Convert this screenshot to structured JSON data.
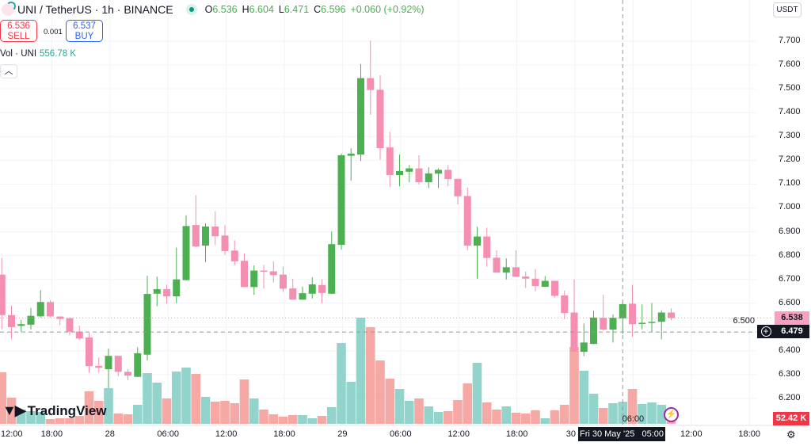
{
  "header": {
    "symbol": "UNI / TetherUS · 1h · BINANCE",
    "o_label": "O",
    "o": "6.536",
    "h_label": "H",
    "h": "6.604",
    "l_label": "L",
    "l": "6.471",
    "c_label": "C",
    "c": "6.596",
    "change": "+0.060 (+0.92%)"
  },
  "trade": {
    "sell_price": "6.536",
    "sell_label": "SELL",
    "spread": "0.001",
    "buy_price": "6.537",
    "buy_label": "BUY"
  },
  "volume_legend": {
    "label": "Vol · UNI",
    "value": "556.78 K"
  },
  "collapse_icon": "chevron-up-icon",
  "currency": "USDT",
  "price_axis": [
    "7.700",
    "7.600",
    "7.500",
    "7.400",
    "7.300",
    "7.200",
    "7.100",
    "7.000",
    "6.900",
    "6.800",
    "6.700",
    "6.600",
    "6.500",
    "6.400",
    "6.300",
    "6.200"
  ],
  "time_axis": [
    "12:00",
    "18:00",
    "28",
    "06:00",
    "12:00",
    "18:00",
    "29",
    "06:00",
    "12:00",
    "18:00",
    "30",
    "06:00",
    "12:00",
    "18:00"
  ],
  "last_price_label": "6.538",
  "crosshair_price_label": "6.479",
  "crosshair_time_label": "Fri 30 May '25   05:00",
  "volume_label": "52.42 K",
  "brand": "TradingView",
  "colors": {
    "up": "#4caf50",
    "down": "#f48fb1",
    "vol_up": "#92d3cc",
    "vol_down": "#f6a8a4"
  },
  "chart_data": {
    "type": "candlestick",
    "interval": "1h",
    "first_bar": "27 May 13:00",
    "ylim": [
      6.2,
      7.7
    ],
    "ohlc": [
      [
        6.72,
        6.79,
        6.49,
        6.55
      ],
      [
        6.55,
        6.59,
        6.45,
        6.5
      ],
      [
        6.505,
        6.53,
        6.48,
        6.512
      ],
      [
        6.51,
        6.58,
        6.49,
        6.547
      ],
      [
        6.545,
        6.655,
        6.54,
        6.605
      ],
      [
        6.605,
        6.612,
        6.54,
        6.545
      ],
      [
        6.544,
        6.545,
        6.507,
        6.534
      ],
      [
        6.537,
        6.54,
        6.465,
        6.48
      ],
      [
        6.481,
        6.506,
        6.445,
        6.452
      ],
      [
        6.456,
        6.476,
        6.308,
        6.336
      ],
      [
        6.337,
        6.372,
        6.308,
        6.329
      ],
      [
        6.323,
        6.41,
        6.243,
        6.379
      ],
      [
        6.379,
        6.38,
        6.293,
        6.312
      ],
      [
        6.312,
        6.323,
        6.277,
        6.296
      ],
      [
        6.291,
        6.415,
        6.29,
        6.39
      ],
      [
        6.384,
        6.715,
        6.36,
        6.639
      ],
      [
        6.64,
        6.712,
        6.587,
        6.659
      ],
      [
        6.659,
        6.678,
        6.598,
        6.629
      ],
      [
        6.629,
        6.833,
        6.6,
        6.7
      ],
      [
        6.697,
        6.969,
        6.695,
        6.924
      ],
      [
        6.928,
        7.053,
        6.835,
        6.838
      ],
      [
        6.842,
        6.935,
        6.773,
        6.922
      ],
      [
        6.922,
        6.986,
        6.844,
        6.881
      ],
      [
        6.884,
        6.928,
        6.803,
        6.819
      ],
      [
        6.821,
        6.864,
        6.759,
        6.776
      ],
      [
        6.778,
        6.809,
        6.667,
        6.668
      ],
      [
        6.668,
        6.759,
        6.635,
        6.737
      ],
      [
        6.737,
        6.761,
        6.661,
        6.733
      ],
      [
        6.734,
        6.776,
        6.687,
        6.718
      ],
      [
        6.72,
        6.753,
        6.648,
        6.661
      ],
      [
        6.662,
        6.703,
        6.615,
        6.615
      ],
      [
        6.615,
        6.67,
        6.614,
        6.642
      ],
      [
        6.64,
        6.709,
        6.62,
        6.679
      ],
      [
        6.676,
        6.7,
        6.6,
        6.643
      ],
      [
        6.64,
        6.901,
        6.639,
        6.848
      ],
      [
        6.845,
        7.228,
        6.825,
        7.221
      ],
      [
        7.219,
        7.25,
        7.114,
        7.228
      ],
      [
        7.224,
        7.604,
        7.197,
        7.545
      ],
      [
        7.545,
        7.703,
        7.391,
        7.495
      ],
      [
        7.496,
        7.557,
        7.202,
        7.251
      ],
      [
        7.254,
        7.319,
        7.088,
        7.138
      ],
      [
        7.138,
        7.224,
        7.091,
        7.155
      ],
      [
        7.152,
        7.18,
        7.108,
        7.166
      ],
      [
        7.166,
        7.221,
        7.099,
        7.108
      ],
      [
        7.108,
        7.171,
        7.083,
        7.145
      ],
      [
        7.144,
        7.166,
        7.083,
        7.16
      ],
      [
        7.16,
        7.18,
        7.091,
        7.121
      ],
      [
        7.122,
        7.122,
        7.014,
        7.049
      ],
      [
        7.05,
        7.086,
        6.822,
        6.842
      ],
      [
        6.842,
        6.921,
        6.703,
        6.88
      ],
      [
        6.88,
        6.917,
        6.753,
        6.79
      ],
      [
        6.791,
        6.822,
        6.728,
        6.729
      ],
      [
        6.729,
        6.788,
        6.7,
        6.751
      ],
      [
        6.751,
        6.822,
        6.71,
        6.711
      ],
      [
        6.712,
        6.733,
        6.664,
        6.703
      ],
      [
        6.703,
        6.744,
        6.65,
        6.672
      ],
      [
        6.669,
        6.714,
        6.668,
        6.694
      ],
      [
        6.694,
        6.695,
        6.625,
        6.631
      ],
      [
        6.633,
        6.653,
        6.533,
        6.559
      ],
      [
        6.561,
        6.7,
        6.396,
        6.396
      ],
      [
        6.396,
        6.515,
        6.378,
        6.435
      ],
      [
        6.429,
        6.568,
        6.428,
        6.54
      ],
      [
        6.539,
        6.636,
        6.485,
        6.489
      ],
      [
        6.489,
        6.553,
        6.435,
        6.539
      ],
      [
        6.536,
        6.604,
        6.471,
        6.596
      ],
      [
        6.598,
        6.678,
        6.459,
        6.512
      ],
      [
        6.513,
        6.595,
        6.49,
        6.518
      ],
      [
        6.517,
        6.601,
        6.479,
        6.522
      ],
      [
        6.522,
        6.57,
        6.448,
        6.561
      ],
      [
        6.561,
        6.578,
        6.529,
        6.538
      ]
    ],
    "volume_k": [
      1300,
      660,
      360,
      320,
      300,
      120,
      140,
      140,
      200,
      820,
      580,
      900,
      260,
      240,
      480,
      1280,
      1040,
      640,
      1320,
      1420,
      1260,
      680,
      560,
      580,
      520,
      1120,
      640,
      360,
      240,
      180,
      220,
      220,
      140,
      200,
      420,
      2040,
      1060,
      2680,
      2440,
      1600,
      1140,
      880,
      580,
      640,
      440,
      300,
      320,
      600,
      1020,
      1540,
      540,
      360,
      440,
      280,
      260,
      340,
      140,
      340,
      480,
      1940,
      1340,
      760,
      400,
      520,
      557,
      880,
      500,
      540,
      480,
      52
    ],
    "last_price": 6.538,
    "crosshair_price": 6.479,
    "crosshair_bar": 64
  }
}
